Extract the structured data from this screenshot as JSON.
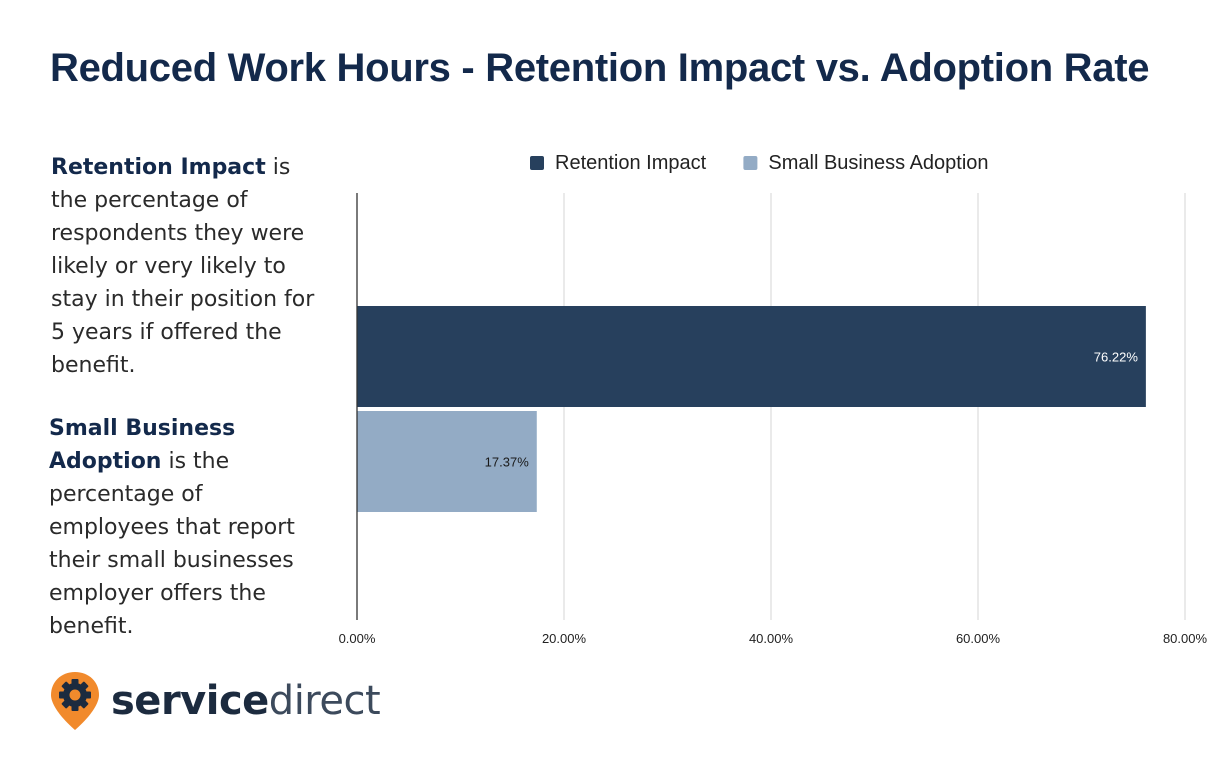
{
  "title": "Reduced Work Hours - Retention Impact vs. Adoption Rate",
  "descriptions": {
    "retention": {
      "term": "Retention Impact",
      "text": " is the percentage of respondents they were likely or very likely to stay in their position for 5 years if offered the benefit."
    },
    "adoption": {
      "term": "Small Business Adoption",
      "text": " is the percentage of employees that report their small businesses employer offers the benefit."
    }
  },
  "logo": {
    "bold_part": "service",
    "light_part": "direct",
    "icon": "gear-pin-icon",
    "colors": {
      "pin": "#f18a2c",
      "text": "#1c2b3f"
    }
  },
  "chart_data": {
    "type": "bar",
    "orientation": "horizontal",
    "categories": [
      ""
    ],
    "series": [
      {
        "name": "Retention Impact",
        "values": [
          76.22
        ],
        "labels": [
          "76.22%"
        ],
        "color": "#27405d"
      },
      {
        "name": "Small Business Adoption",
        "values": [
          17.37
        ],
        "labels": [
          "17.37%"
        ],
        "color": "#93abc5"
      }
    ],
    "xlim": [
      0,
      80
    ],
    "xticks": [
      0,
      20,
      40,
      60,
      80
    ],
    "xtick_labels": [
      "0.00%",
      "20.00%",
      "40.00%",
      "60.00%",
      "80.00%"
    ],
    "grid": true,
    "legend": "top"
  }
}
